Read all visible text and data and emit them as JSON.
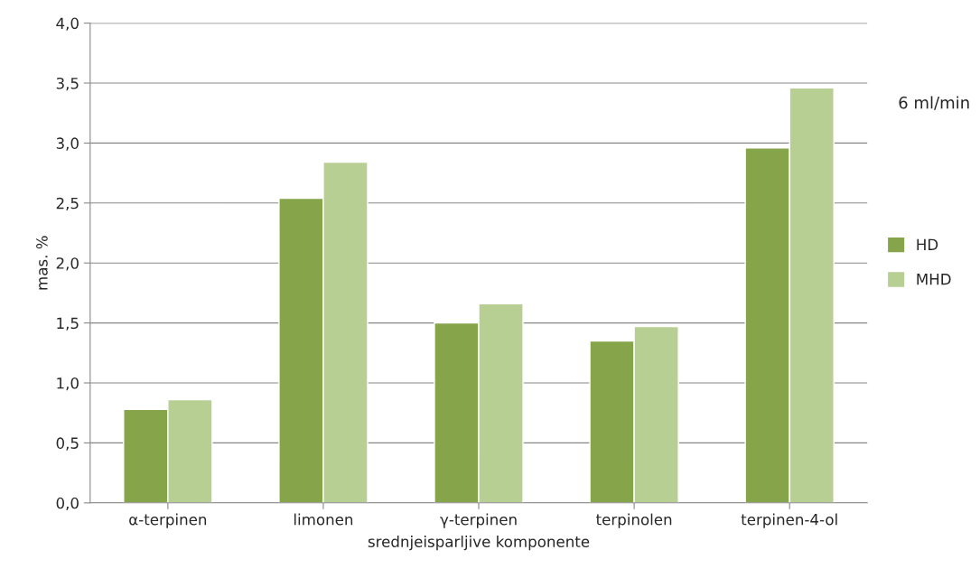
{
  "chart_data": {
    "type": "bar",
    "xlabel": "srednjeisparljive komponente",
    "ylabel": "mas. %",
    "categories": [
      "α-terpinen",
      "limonen",
      "γ-terpinen",
      "terpinolen",
      "terpinen-4-ol"
    ],
    "series": [
      {
        "name": "HD",
        "color": "#86a44a",
        "values": [
          0.78,
          2.54,
          1.5,
          1.35,
          2.96
        ]
      },
      {
        "name": "MHD",
        "color": "#b8cf94",
        "values": [
          0.86,
          2.84,
          1.66,
          1.47,
          3.46
        ]
      }
    ],
    "ylim": [
      0,
      4
    ],
    "yticks": [
      {
        "value": 0,
        "label": "0,0"
      },
      {
        "value": 0.5,
        "label": "0,5"
      },
      {
        "value": 1,
        "label": "1,0"
      },
      {
        "value": 1.5,
        "label": "1,5"
      },
      {
        "value": 2,
        "label": "2,0"
      },
      {
        "value": 2.5,
        "label": "2,5"
      },
      {
        "value": 3,
        "label": "3,0"
      },
      {
        "value": 3.5,
        "label": "3,5"
      },
      {
        "value": 4,
        "label": "4,0"
      }
    ],
    "grid": "y",
    "legend": "right",
    "annotations": [
      "6 ml/min"
    ]
  }
}
